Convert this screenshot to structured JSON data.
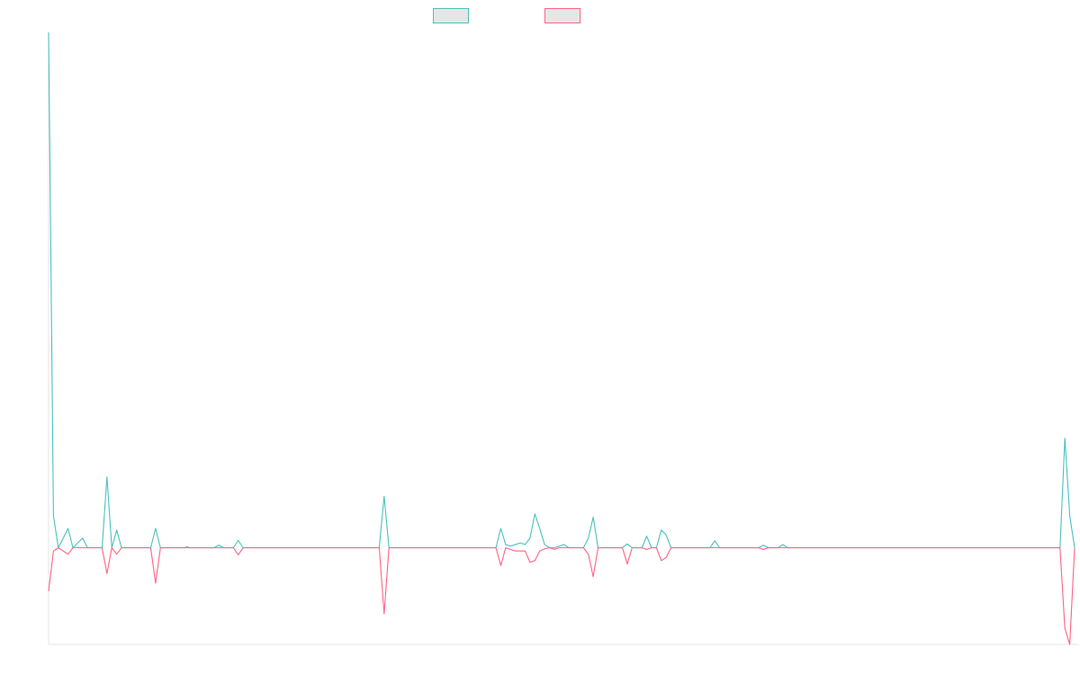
{
  "chart_data": {
    "type": "line",
    "grid": false,
    "legend_position": "top-center",
    "x_count": 211,
    "ylim": [
      -30,
      160
    ],
    "baseline": 0,
    "series": [
      {
        "color": "#4bc0c0",
        "fill": "#e6e6e6",
        "points": [
          [
            0,
            160
          ],
          [
            1,
            10
          ],
          [
            2,
            0
          ],
          [
            4,
            6
          ],
          [
            5,
            0
          ],
          [
            7,
            3
          ],
          [
            8,
            0
          ],
          [
            11,
            0
          ],
          [
            12,
            22
          ],
          [
            13,
            0
          ],
          [
            14,
            5.5
          ],
          [
            15,
            0
          ],
          [
            21,
            0
          ],
          [
            22,
            6
          ],
          [
            23,
            0
          ],
          [
            34,
            0
          ],
          [
            35,
            0.8
          ],
          [
            36,
            0
          ],
          [
            38,
            0
          ],
          [
            39,
            2.3
          ],
          [
            40,
            0
          ],
          [
            68,
            0
          ],
          [
            69,
            16
          ],
          [
            70,
            0
          ],
          [
            92,
            0
          ],
          [
            93,
            6
          ],
          [
            94,
            1
          ],
          [
            95,
            0.5
          ],
          [
            96,
            1
          ],
          [
            97,
            1.5
          ],
          [
            98,
            1
          ],
          [
            99,
            3
          ],
          [
            100,
            10.5
          ],
          [
            101,
            6
          ],
          [
            102,
            1
          ],
          [
            103,
            0
          ],
          [
            104,
            0
          ],
          [
            105,
            0.5
          ],
          [
            106,
            1
          ],
          [
            107,
            0
          ],
          [
            110,
            0
          ],
          [
            111,
            3
          ],
          [
            112,
            9.5
          ],
          [
            113,
            0
          ],
          [
            118,
            0
          ],
          [
            119,
            1.2
          ],
          [
            120,
            0
          ],
          [
            122,
            0
          ],
          [
            123,
            3.6
          ],
          [
            124,
            0
          ],
          [
            125,
            0
          ],
          [
            126,
            5.5
          ],
          [
            127,
            4
          ],
          [
            128,
            0
          ],
          [
            136,
            0
          ],
          [
            137,
            2.2
          ],
          [
            138,
            0
          ],
          [
            146,
            0
          ],
          [
            147,
            0.8
          ],
          [
            148,
            0
          ],
          [
            150,
            0
          ],
          [
            151,
            1
          ],
          [
            152,
            0
          ],
          [
            208,
            0
          ],
          [
            209,
            34
          ],
          [
            210,
            10
          ],
          [
            211,
            0
          ]
        ]
      },
      {
        "color": "#ff6384",
        "fill": "#e6e6e6",
        "points": [
          [
            0,
            -13.5
          ],
          [
            1,
            -1
          ],
          [
            2,
            0
          ],
          [
            4,
            -2
          ],
          [
            5,
            0
          ],
          [
            7,
            0
          ],
          [
            8,
            0
          ],
          [
            11,
            0
          ],
          [
            12,
            -8
          ],
          [
            13,
            0
          ],
          [
            14,
            -2
          ],
          [
            15,
            0
          ],
          [
            21,
            0
          ],
          [
            22,
            -11
          ],
          [
            23,
            0
          ],
          [
            28,
            0
          ],
          [
            28.5,
            0.3
          ],
          [
            29,
            0
          ],
          [
            38,
            0
          ],
          [
            39,
            -2.2
          ],
          [
            40,
            0
          ],
          [
            68,
            0
          ],
          [
            69,
            -20.5
          ],
          [
            70,
            0
          ],
          [
            92,
            0
          ],
          [
            93,
            -5.5
          ],
          [
            94,
            0
          ],
          [
            95,
            -0.5
          ],
          [
            96,
            -1
          ],
          [
            97,
            -1
          ],
          [
            98,
            -1
          ],
          [
            99,
            -4.5
          ],
          [
            100,
            -4
          ],
          [
            101,
            -1
          ],
          [
            102,
            -0.3
          ],
          [
            103,
            0
          ],
          [
            104,
            -0.5
          ],
          [
            105,
            0
          ],
          [
            107,
            0
          ],
          [
            110,
            0
          ],
          [
            111,
            -2
          ],
          [
            112,
            -9
          ],
          [
            113,
            0
          ],
          [
            118,
            0
          ],
          [
            119,
            -5
          ],
          [
            120,
            0
          ],
          [
            122,
            0
          ],
          [
            123,
            -0.5
          ],
          [
            124,
            0
          ],
          [
            125,
            0
          ],
          [
            126,
            -4
          ],
          [
            127,
            -3
          ],
          [
            128,
            0
          ],
          [
            146,
            0
          ],
          [
            147,
            -0.5
          ],
          [
            148,
            0
          ],
          [
            208,
            0
          ],
          [
            209,
            -25
          ],
          [
            210,
            -30
          ],
          [
            211,
            0
          ]
        ]
      }
    ]
  }
}
